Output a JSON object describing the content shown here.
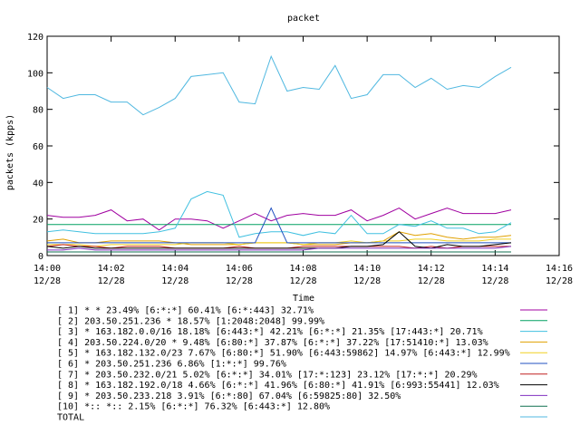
{
  "chart_data": {
    "type": "line",
    "title": "packet",
    "xlabel": "Time",
    "ylabel": "packets (kpps)",
    "ylim": [
      0,
      120
    ],
    "yticks": [
      0,
      20,
      40,
      60,
      80,
      100,
      120
    ],
    "xlim": [
      "14:00",
      "14:16"
    ],
    "xticks": [
      {
        "time": "14:00",
        "date": "12/28"
      },
      {
        "time": "14:02",
        "date": "12/28"
      },
      {
        "time": "14:04",
        "date": "12/28"
      },
      {
        "time": "14:06",
        "date": "12/28"
      },
      {
        "time": "14:08",
        "date": "12/28"
      },
      {
        "time": "14:10",
        "date": "12/28"
      },
      {
        "time": "14:12",
        "date": "12/28"
      },
      {
        "time": "14:14",
        "date": "12/28"
      },
      {
        "time": "14:16",
        "date": "12/28"
      }
    ],
    "grid": false,
    "legend_position": "bottom",
    "x_minutes": [
      0,
      0.5,
      1,
      1.5,
      2,
      2.5,
      3,
      3.5,
      4,
      4.5,
      5,
      5.5,
      6,
      6.5,
      7,
      7.5,
      8,
      8.5,
      9,
      9.5,
      10,
      10.5,
      11,
      11.5,
      12,
      12.5,
      13,
      13.5,
      14,
      14.5
    ],
    "series": [
      {
        "name": "[ 1] * * 23.49%  [6:*:*] 60.41% [6:*:443] 32.71%",
        "color": "#a000a0",
        "values": [
          22,
          21,
          21,
          22,
          25,
          19,
          20,
          14,
          20,
          20,
          19,
          15,
          19,
          23,
          19,
          22,
          23,
          22,
          22,
          25,
          19,
          22,
          26,
          20,
          23,
          26,
          23,
          23,
          23,
          25
        ]
      },
      {
        "name": "[ 2] 203.50.251.236 * 18.57%  [1:2048:2048] 99.99%",
        "color": "#00a060",
        "values": [
          17,
          17,
          17,
          17,
          17,
          17,
          17,
          17,
          17,
          17,
          17,
          17,
          17,
          17,
          17,
          17,
          17,
          17,
          17,
          17,
          17,
          17,
          17,
          17,
          17,
          17,
          17,
          17,
          17,
          17
        ]
      },
      {
        "name": "[ 3] * 163.182.0.0/16 18.18%  [6:443:*] 42.21% [6:*:*] 21.35% [17:443:*] 20.71%",
        "color": "#40c0e0",
        "values": [
          13,
          14,
          13,
          12,
          12,
          12,
          12,
          13,
          15,
          31,
          35,
          33,
          10,
          12,
          13,
          13,
          11,
          13,
          12,
          22,
          12,
          12,
          17,
          16,
          19,
          15,
          15,
          12,
          13,
          18
        ]
      },
      {
        "name": "[ 4] 203.50.224.0/20 * 9.48%  [6:80:*] 37.87% [6:*:*] 37.22% [17:51410:*] 13.03%",
        "color": "#e0a000",
        "values": [
          8,
          9,
          7,
          7,
          8,
          8,
          8,
          8,
          7,
          6,
          6,
          6,
          6,
          7,
          7,
          7,
          6,
          6,
          6,
          7,
          7,
          8,
          13,
          11,
          12,
          10,
          9,
          10,
          10,
          11
        ]
      },
      {
        "name": "[ 5] * 163.182.132.0/23 7.67%  [6:80:*] 51.90% [6:443:59862] 14.97% [6:443:*] 12.99%",
        "color": "#f0d020",
        "values": [
          6,
          6,
          6,
          5,
          6,
          6,
          6,
          6,
          6,
          7,
          7,
          7,
          6,
          7,
          7,
          7,
          6,
          7,
          7,
          8,
          7,
          8,
          8,
          9,
          9,
          8,
          8,
          8,
          9,
          9
        ]
      },
      {
        "name": "[ 6] * 203.50.251.236 6.86%  [1:*:*] 99.76%",
        "color": "#2050c0",
        "values": [
          7,
          7,
          7,
          7,
          7,
          7,
          7,
          7,
          7,
          7,
          7,
          7,
          7,
          7,
          26,
          7,
          7,
          7,
          7,
          7,
          7,
          7,
          7,
          7,
          7,
          7,
          7,
          7,
          7,
          7
        ]
      },
      {
        "name": "[ 7] * 203.50.232.0/21 5.02%  [6:*:*] 34.01% [17:*:123] 23.12% [17:*:*] 20.29%",
        "color": "#c02020",
        "values": [
          5,
          6,
          5,
          5,
          4,
          5,
          5,
          5,
          4,
          4,
          4,
          4,
          5,
          4,
          4,
          4,
          5,
          5,
          5,
          5,
          5,
          5,
          5,
          4,
          5,
          4,
          5,
          5,
          5,
          5
        ]
      },
      {
        "name": "[ 8] * 163.182.192.0/18 4.66%  [6:*:*] 41.96% [6:80:*] 41.91% [6:993:55441] 12.03%",
        "color": "#000000",
        "values": [
          5,
          4,
          5,
          4,
          4,
          4,
          4,
          4,
          4,
          4,
          4,
          4,
          4,
          4,
          4,
          4,
          4,
          4,
          4,
          5,
          5,
          6,
          13,
          5,
          4,
          6,
          5,
          5,
          6,
          7
        ]
      },
      {
        "name": "[ 9] * 203.50.233.218 3.91%  [6:*:80] 67.04% [6:59825:80] 32.50%",
        "color": "#8030c0",
        "values": [
          3,
          3,
          4,
          3,
          3,
          3,
          3,
          3,
          3,
          3,
          3,
          3,
          3,
          3,
          3,
          3,
          3,
          4,
          4,
          4,
          4,
          4,
          4,
          4,
          4,
          4,
          4,
          4,
          4,
          5
        ]
      },
      {
        "name": "[10] *:: *:: 2.15%  [6:*:*] 76.32% [6:443:*] 12.80%",
        "color": "#107050",
        "values": [
          2,
          2,
          2,
          2,
          2,
          2,
          2,
          2,
          2,
          2,
          2,
          2,
          2,
          2,
          2,
          2,
          2,
          2,
          2,
          2,
          2,
          2,
          2,
          2,
          2,
          2,
          2,
          2,
          2,
          2
        ]
      },
      {
        "name": "TOTAL",
        "color": "#50b8e0",
        "values": [
          92,
          86,
          88,
          88,
          84,
          84,
          77,
          81,
          86,
          98,
          99,
          100,
          84,
          83,
          109,
          90,
          92,
          91,
          104,
          86,
          88,
          99,
          99,
          92,
          97,
          91,
          93,
          92,
          98,
          103
        ]
      }
    ]
  }
}
